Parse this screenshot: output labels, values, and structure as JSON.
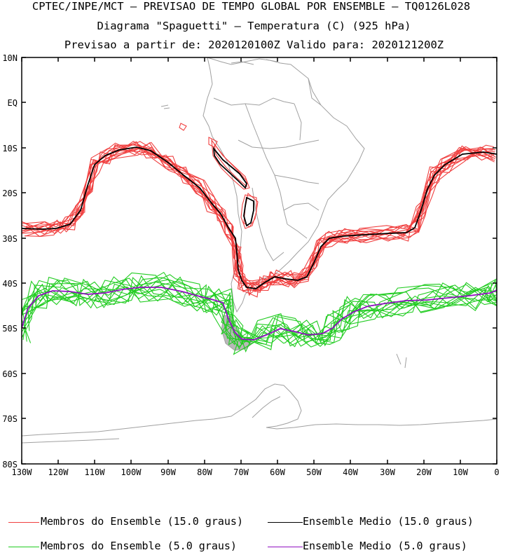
{
  "header": {
    "line1": "CPTEC/INPE/MCT – PREVISAO DE TEMPO GLOBAL POR ENSEMBLE – TQ0126L028",
    "line2": "Diagrama \"Spaguetti\" – Temperatura (C) (925 hPa)",
    "line3": "Previsao a partir de: 2020120100Z  Valido para: 2020121200Z"
  },
  "axes": {
    "lat_labels": [
      "10N",
      "EQ",
      "10S",
      "20S",
      "30S",
      "40S",
      "50S",
      "60S",
      "70S",
      "80S"
    ],
    "lon_labels": [
      "130W",
      "120W",
      "110W",
      "100W",
      "90W",
      "80W",
      "70W",
      "60W",
      "50W",
      "40W",
      "30W",
      "20W",
      "10W",
      "0"
    ]
  },
  "legend": {
    "red_members": "Membros do Ensemble (15.0 graus)",
    "black_mean": "Ensemble Medio (15.0 graus)",
    "green_members": "Membros do Ensemble (5.0 graus)",
    "purple_mean": "Ensemble Medio (5.0 graus)"
  },
  "colors": {
    "red": "#f04040",
    "black": "#000000",
    "green": "#22cc22",
    "purple": "#9010c0",
    "coast": "#a0a0a0"
  }
}
